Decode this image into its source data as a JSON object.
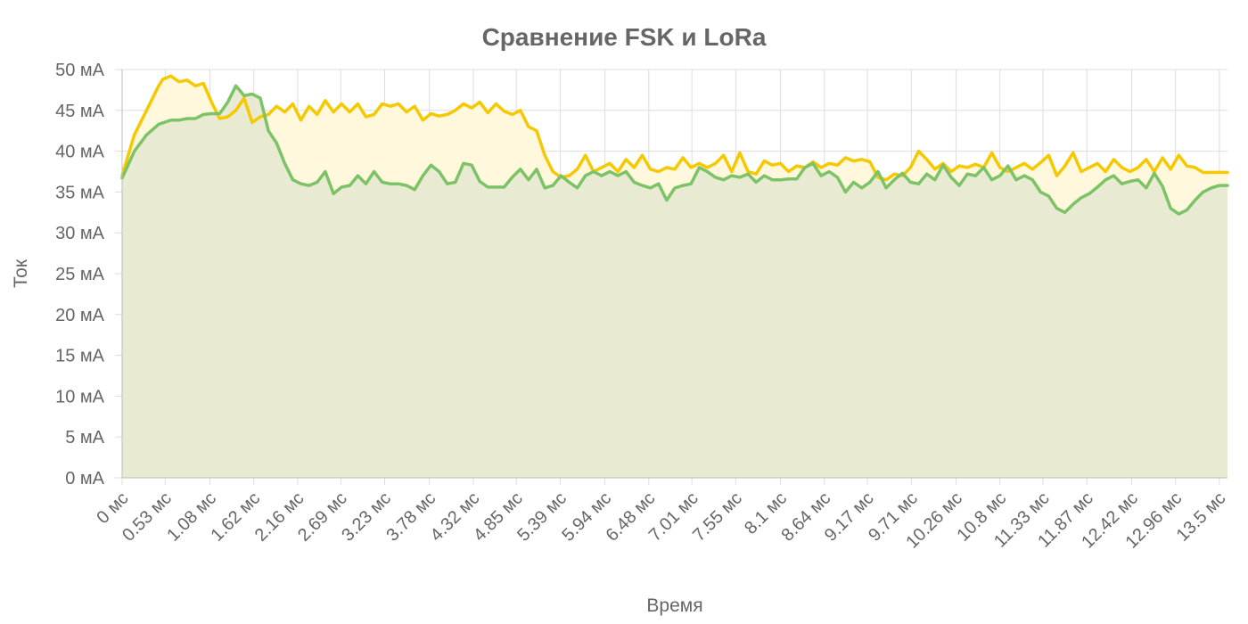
{
  "chart_data": {
    "type": "area",
    "title": "Сравнение FSK и LoRa",
    "xlabel": "Время",
    "ylabel": "Ток",
    "y_unit": "мА",
    "x_unit": "мс",
    "ylim": [
      0,
      50
    ],
    "xlim": [
      0,
      13.6
    ],
    "y_ticks": [
      0,
      5,
      10,
      15,
      20,
      25,
      30,
      35,
      40,
      45,
      50
    ],
    "y_tick_labels": [
      "0 мА",
      "5 мА",
      "10 мА",
      "15 мА",
      "20 мА",
      "25 мА",
      "30 мА",
      "35 мА",
      "40 мА",
      "45 мА",
      "50 мА"
    ],
    "x_ticks": [
      0,
      0.53,
      1.08,
      1.62,
      2.16,
      2.69,
      3.23,
      3.78,
      4.32,
      4.85,
      5.39,
      5.94,
      6.48,
      7.01,
      7.55,
      8.1,
      8.64,
      9.17,
      9.71,
      10.26,
      10.8,
      11.33,
      11.87,
      12.42,
      12.96,
      13.5
    ],
    "x_tick_labels": [
      "0 мс",
      "0.53 мс",
      "1.08 мс",
      "1.62 мс",
      "2.16 мс",
      "2.69 мс",
      "3.23 мс",
      "3.78 мс",
      "4.32 мс",
      "4.85 мс",
      "5.39 мс",
      "5.94 мс",
      "6.48 мс",
      "7.01 мс",
      "7.55 мс",
      "8.1 мс",
      "8.64 мс",
      "9.17 мс",
      "9.71 мс",
      "10.26 мс",
      "10.8 мс",
      "11.33 мс",
      "11.87 мс",
      "12.42 мс",
      "12.96 мс",
      "13.5 мс"
    ],
    "grid": true,
    "legend": "none",
    "series": [
      {
        "color": "#f5c800",
        "fill": "#fff8dc",
        "x": [
          0,
          0.15,
          0.3,
          0.45,
          0.5,
          0.6,
          0.7,
          0.8,
          0.9,
          1.0,
          1.1,
          1.2,
          1.3,
          1.4,
          1.5,
          1.6,
          1.7,
          1.8,
          1.9,
          2.0,
          2.1,
          2.2,
          2.3,
          2.4,
          2.5,
          2.6,
          2.7,
          2.8,
          2.9,
          3.0,
          3.1,
          3.2,
          3.3,
          3.4,
          3.5,
          3.6,
          3.7,
          3.8,
          3.9,
          4.0,
          4.1,
          4.2,
          4.3,
          4.4,
          4.5,
          4.6,
          4.7,
          4.8,
          4.9,
          5.0,
          5.1,
          5.2,
          5.3,
          5.4,
          5.5,
          5.6,
          5.7,
          5.8,
          5.9,
          6.0,
          6.1,
          6.2,
          6.3,
          6.4,
          6.5,
          6.6,
          6.7,
          6.8,
          6.9,
          7.0,
          7.1,
          7.2,
          7.3,
          7.4,
          7.5,
          7.6,
          7.7,
          7.8,
          7.9,
          8.0,
          8.1,
          8.2,
          8.3,
          8.4,
          8.5,
          8.6,
          8.7,
          8.8,
          8.9,
          9.0,
          9.1,
          9.2,
          9.3,
          9.4,
          9.5,
          9.6,
          9.7,
          9.8,
          9.9,
          10.0,
          10.1,
          10.2,
          10.3,
          10.4,
          10.5,
          10.6,
          10.7,
          10.8,
          10.9,
          11.0,
          11.1,
          11.2,
          11.3,
          11.4,
          11.5,
          11.6,
          11.7,
          11.8,
          11.9,
          12.0,
          12.1,
          12.2,
          12.3,
          12.4,
          12.5,
          12.6,
          12.7,
          12.8,
          12.9,
          13.0,
          13.1,
          13.2,
          13.3,
          13.4,
          13.5,
          13.6
        ],
        "values": [
          37.0,
          42.0,
          45.0,
          48.0,
          48.8,
          49.2,
          48.5,
          48.7,
          48.0,
          48.3,
          46.0,
          44.0,
          44.2,
          45.0,
          46.5,
          43.5,
          44.2,
          44.5,
          45.5,
          44.8,
          45.8,
          43.8,
          45.5,
          44.5,
          46.2,
          44.8,
          45.8,
          44.8,
          45.8,
          44.2,
          44.5,
          45.8,
          45.5,
          45.8,
          44.8,
          45.5,
          43.8,
          44.6,
          44.3,
          44.5,
          45.0,
          45.8,
          45.3,
          46.0,
          44.7,
          45.8,
          44.9,
          44.5,
          45.0,
          43.0,
          42.5,
          39.5,
          37.5,
          36.8,
          37.0,
          37.8,
          39.5,
          37.5,
          38.0,
          38.5,
          37.5,
          39.0,
          38.0,
          39.5,
          37.8,
          37.5,
          38.0,
          37.8,
          39.2,
          38.0,
          38.5,
          38.0,
          38.5,
          39.5,
          37.5,
          39.8,
          37.5,
          37.2,
          38.8,
          38.3,
          38.5,
          37.5,
          38.2,
          38.0,
          38.7,
          38.0,
          38.5,
          38.3,
          39.2,
          38.8,
          39.0,
          38.7,
          36.8,
          36.5,
          37.2,
          37.0,
          38.0,
          40.0,
          39.0,
          37.8,
          38.5,
          37.5,
          38.2,
          38.0,
          38.4,
          38.0,
          39.8,
          38.0,
          37.5,
          38.0,
          38.5,
          37.8,
          38.6,
          39.5,
          37.0,
          38.2,
          39.8,
          37.5,
          38.0,
          38.5,
          37.5,
          39.0,
          38.0,
          37.5,
          38.0,
          39.0,
          37.5,
          39.2,
          37.8,
          39.5,
          38.2,
          38.0,
          37.4,
          37.4,
          37.4,
          37.4
        ]
      },
      {
        "color": "#7cc368",
        "fill": "#e7e8d0",
        "x": [
          0,
          0.15,
          0.3,
          0.45,
          0.6,
          0.7,
          0.8,
          0.9,
          1.0,
          1.1,
          1.2,
          1.3,
          1.4,
          1.5,
          1.6,
          1.7,
          1.8,
          1.9,
          2.0,
          2.1,
          2.2,
          2.3,
          2.4,
          2.5,
          2.6,
          2.7,
          2.8,
          2.9,
          3.0,
          3.1,
          3.2,
          3.3,
          3.4,
          3.5,
          3.6,
          3.7,
          3.8,
          3.9,
          4.0,
          4.1,
          4.2,
          4.3,
          4.4,
          4.5,
          4.6,
          4.7,
          4.8,
          4.9,
          5.0,
          5.1,
          5.2,
          5.3,
          5.4,
          5.5,
          5.6,
          5.7,
          5.8,
          5.9,
          6.0,
          6.1,
          6.2,
          6.3,
          6.4,
          6.5,
          6.6,
          6.7,
          6.8,
          6.9,
          7.0,
          7.1,
          7.2,
          7.3,
          7.4,
          7.5,
          7.6,
          7.7,
          7.8,
          7.9,
          8.0,
          8.1,
          8.2,
          8.3,
          8.4,
          8.5,
          8.6,
          8.7,
          8.8,
          8.9,
          9.0,
          9.1,
          9.2,
          9.3,
          9.4,
          9.5,
          9.6,
          9.7,
          9.8,
          9.9,
          10.0,
          10.1,
          10.2,
          10.3,
          10.4,
          10.5,
          10.6,
          10.7,
          10.8,
          10.9,
          11.0,
          11.1,
          11.2,
          11.3,
          11.4,
          11.5,
          11.6,
          11.7,
          11.8,
          11.9,
          12.0,
          12.1,
          12.2,
          12.3,
          12.4,
          12.5,
          12.6,
          12.7,
          12.8,
          12.9,
          13.0,
          13.1,
          13.2,
          13.3,
          13.4,
          13.5,
          13.6
        ],
        "values": [
          36.7,
          40.0,
          42.0,
          43.3,
          43.8,
          43.8,
          44.0,
          44.0,
          44.5,
          44.6,
          44.6,
          46.0,
          48.0,
          46.8,
          47.0,
          46.5,
          42.5,
          41.0,
          38.5,
          36.5,
          36.0,
          35.8,
          36.2,
          37.5,
          34.8,
          35.6,
          35.8,
          37.0,
          36.0,
          37.5,
          36.2,
          36.0,
          36.0,
          35.8,
          35.3,
          37.0,
          38.3,
          37.5,
          36.0,
          36.2,
          38.5,
          38.3,
          36.3,
          35.6,
          35.6,
          35.6,
          36.8,
          37.8,
          36.5,
          37.8,
          35.5,
          35.8,
          37.0,
          36.2,
          35.5,
          37.0,
          37.5,
          37.0,
          37.5,
          37.0,
          37.5,
          36.2,
          35.8,
          35.5,
          36.0,
          34.0,
          35.5,
          35.8,
          36.0,
          38.0,
          37.5,
          36.8,
          36.5,
          37.0,
          36.8,
          37.2,
          36.2,
          37.0,
          36.5,
          36.5,
          36.6,
          36.6,
          38.0,
          38.5,
          37.0,
          37.5,
          36.8,
          35.0,
          36.2,
          35.5,
          36.2,
          37.5,
          35.5,
          36.5,
          37.3,
          36.2,
          36.0,
          37.2,
          36.5,
          38.3,
          36.8,
          35.8,
          37.2,
          37.0,
          38.0,
          36.5,
          37.0,
          38.2,
          36.5,
          37.0,
          36.5,
          35.0,
          34.5,
          33.0,
          32.5,
          33.5,
          34.3,
          34.8,
          35.6,
          36.5,
          37.0,
          36.0,
          36.3,
          36.5,
          35.5,
          37.3,
          35.7,
          33.0,
          32.3,
          32.8,
          34.0,
          35.0,
          35.5,
          35.8,
          35.8
        ]
      }
    ]
  }
}
